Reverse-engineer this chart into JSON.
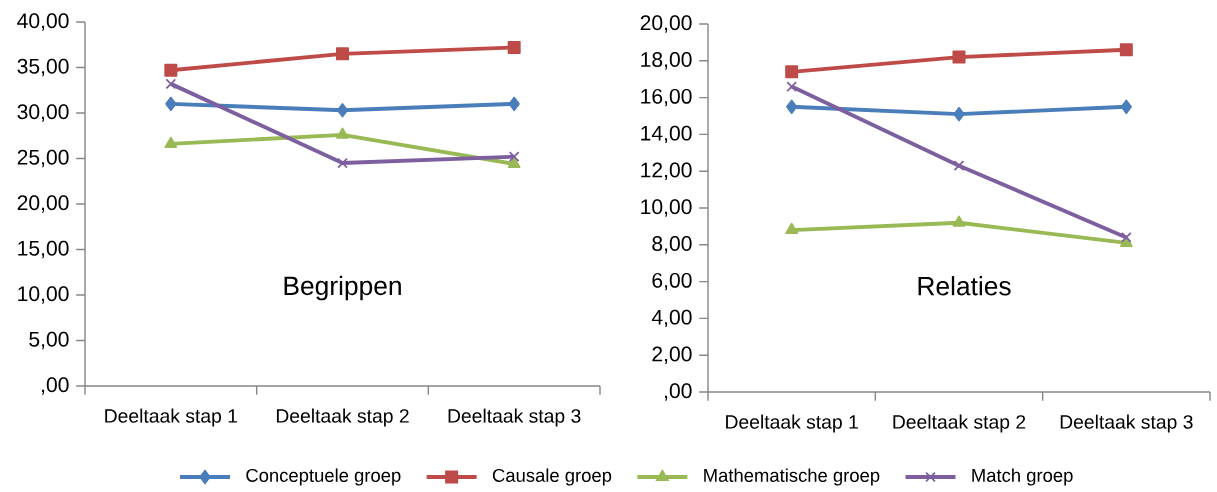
{
  "chart_data": [
    {
      "type": "line",
      "title": "Begrippen",
      "categories": [
        "Deeltaak stap 1",
        "Deeltaak stap 2",
        "Deeltaak stap 3"
      ],
      "ylim": [
        0,
        40
      ],
      "yticks": [
        {
          "value": 0,
          "label": ",00"
        },
        {
          "value": 5,
          "label": "5,00"
        },
        {
          "value": 10,
          "label": "10,00"
        },
        {
          "value": 15,
          "label": "15,00"
        },
        {
          "value": 20,
          "label": "20,00"
        },
        {
          "value": 25,
          "label": "25,00"
        },
        {
          "value": 30,
          "label": "30,00"
        },
        {
          "value": 35,
          "label": "35,00"
        },
        {
          "value": 40,
          "label": "40,00"
        }
      ],
      "grid": false,
      "legend": "bottom",
      "series": [
        {
          "name": "Conceptuele groep",
          "color": "#4a7ebb",
          "marker": "diamond",
          "values": [
            31.0,
            30.3,
            31.0
          ]
        },
        {
          "name": "Causale groep",
          "color": "#be4b48",
          "marker": "square",
          "values": [
            34.7,
            36.5,
            37.2
          ]
        },
        {
          "name": "Mathematische groep",
          "color": "#98b954",
          "marker": "triangle",
          "values": [
            26.6,
            27.6,
            24.4
          ]
        },
        {
          "name": "Match groep",
          "color": "#7d5fa0",
          "marker": "cross",
          "values": [
            33.2,
            24.5,
            25.2
          ]
        }
      ]
    },
    {
      "type": "line",
      "title": "Relaties",
      "categories": [
        "Deeltaak stap 1",
        "Deeltaak stap 2",
        "Deeltaak stap 3"
      ],
      "ylim": [
        0,
        20
      ],
      "yticks": [
        {
          "value": 0,
          "label": ",00"
        },
        {
          "value": 2,
          "label": "2,00"
        },
        {
          "value": 4,
          "label": "4,00"
        },
        {
          "value": 6,
          "label": "6,00"
        },
        {
          "value": 8,
          "label": "8,00"
        },
        {
          "value": 10,
          "label": "10,00"
        },
        {
          "value": 12,
          "label": "12,00"
        },
        {
          "value": 14,
          "label": "14,00"
        },
        {
          "value": 16,
          "label": "16,00"
        },
        {
          "value": 18,
          "label": "18,00"
        },
        {
          "value": 20,
          "label": "20,00"
        }
      ],
      "grid": false,
      "series": [
        {
          "color": "#4a7ebb",
          "marker": "diamond",
          "values": [
            15.5,
            15.1,
            15.5
          ]
        },
        {
          "color": "#be4b48",
          "marker": "square",
          "values": [
            17.4,
            18.2,
            18.6
          ]
        },
        {
          "color": "#98b954",
          "marker": "triangle",
          "values": [
            8.8,
            9.2,
            8.1
          ]
        },
        {
          "color": "#7d5fa0",
          "marker": "cross",
          "values": [
            16.6,
            12.3,
            8.4
          ]
        }
      ]
    }
  ]
}
